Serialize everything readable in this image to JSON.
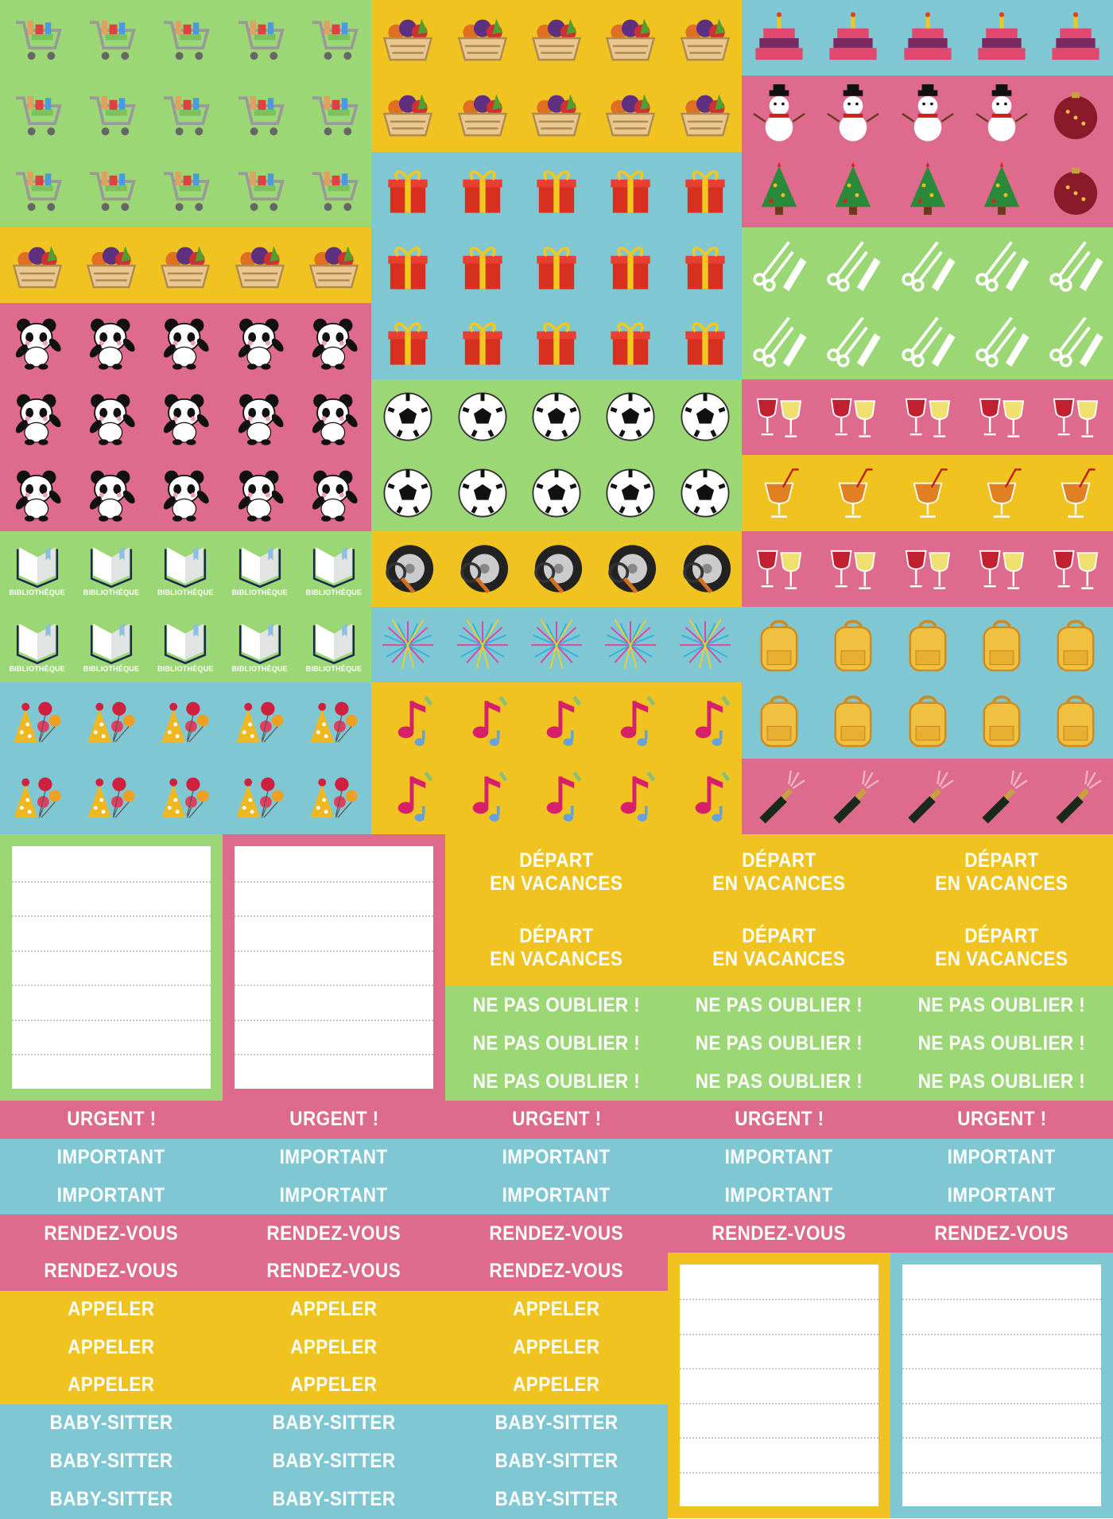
{
  "colors": {
    "green": "#9cd776",
    "pink": "#de6b8d",
    "yellow": "#f0c320",
    "blue": "#7fc8d3"
  },
  "icon_grid": [
    {
      "rows": [
        {
          "color": "green",
          "icons": [
            "cart",
            "cart",
            "cart",
            "cart",
            "cart"
          ]
        },
        {
          "color": "green",
          "icons": [
            "cart",
            "cart",
            "cart",
            "cart",
            "cart"
          ]
        },
        {
          "color": "green",
          "icons": [
            "cart",
            "cart",
            "cart",
            "cart",
            "cart"
          ]
        },
        {
          "color": "yellow",
          "icons": [
            "basket",
            "basket",
            "basket",
            "basket",
            "basket"
          ]
        },
        {
          "color": "pink",
          "icons": [
            "panda",
            "panda",
            "panda",
            "panda",
            "panda"
          ]
        },
        {
          "color": "pink",
          "icons": [
            "panda",
            "panda",
            "panda",
            "panda",
            "panda"
          ]
        },
        {
          "color": "pink",
          "icons": [
            "panda",
            "panda",
            "panda",
            "panda",
            "panda"
          ]
        },
        {
          "color": "green",
          "icons": [
            "book",
            "book",
            "book",
            "book",
            "book"
          ],
          "label": "BIBLIOTHÈQUE"
        },
        {
          "color": "green",
          "icons": [
            "book",
            "book",
            "book",
            "book",
            "book"
          ],
          "label": "BIBLIOTHÈQUE"
        },
        {
          "color": "blue",
          "icons": [
            "party",
            "party",
            "party",
            "party",
            "party"
          ]
        },
        {
          "color": "blue",
          "icons": [
            "party",
            "party",
            "party",
            "party",
            "party"
          ]
        }
      ]
    },
    {
      "rows": [
        {
          "color": "yellow",
          "icons": [
            "basket",
            "basket",
            "basket",
            "basket",
            "basket"
          ]
        },
        {
          "color": "yellow",
          "icons": [
            "basket",
            "basket",
            "basket",
            "basket",
            "basket"
          ]
        },
        {
          "color": "blue",
          "icons": [
            "gift",
            "gift",
            "gift",
            "gift",
            "gift"
          ]
        },
        {
          "color": "blue",
          "icons": [
            "gift",
            "gift",
            "gift",
            "gift",
            "gift"
          ]
        },
        {
          "color": "blue",
          "icons": [
            "gift",
            "gift",
            "gift",
            "gift",
            "gift"
          ]
        },
        {
          "color": "green",
          "icons": [
            "soccer-ball",
            "soccer-ball",
            "soccer-ball",
            "soccer-ball",
            "soccer-ball"
          ]
        },
        {
          "color": "green",
          "icons": [
            "soccer-ball",
            "soccer-ball",
            "soccer-ball",
            "soccer-ball",
            "soccer-ball"
          ]
        },
        {
          "color": "yellow",
          "icons": [
            "tire",
            "tire",
            "tire",
            "tire",
            "tire"
          ]
        },
        {
          "color": "blue",
          "icons": [
            "fireworks",
            "fireworks",
            "fireworks",
            "fireworks",
            "fireworks"
          ]
        },
        {
          "color": "yellow",
          "icons": [
            "music-note",
            "music-note",
            "music-note",
            "music-note",
            "music-note"
          ]
        },
        {
          "color": "yellow",
          "icons": [
            "music-note",
            "music-note",
            "music-note",
            "music-note",
            "music-note"
          ]
        }
      ]
    },
    {
      "rows": [
        {
          "color": "blue",
          "icons": [
            "cake",
            "cake",
            "cake",
            "cake",
            "cake"
          ]
        },
        {
          "color": "pink",
          "icons": [
            "snowman",
            "snowman",
            "snowman",
            "snowman",
            "ornament"
          ]
        },
        {
          "color": "pink",
          "icons": [
            "christmas-tree",
            "christmas-tree",
            "christmas-tree",
            "christmas-tree",
            "ornament"
          ]
        },
        {
          "color": "green",
          "icons": [
            "scissors-comb",
            "scissors-comb",
            "scissors-comb",
            "scissors-comb",
            "scissors-comb"
          ]
        },
        {
          "color": "green",
          "icons": [
            "scissors-comb",
            "scissors-comb",
            "scissors-comb",
            "scissors-comb",
            "scissors-comb"
          ]
        },
        {
          "color": "pink",
          "icons": [
            "wine-glasses",
            "wine-glasses",
            "wine-glasses",
            "wine-glasses",
            "wine-glasses"
          ]
        },
        {
          "color": "yellow",
          "icons": [
            "cocktail",
            "cocktail",
            "cocktail",
            "cocktail",
            "cocktail"
          ]
        },
        {
          "color": "pink",
          "icons": [
            "wine-glasses",
            "wine-glasses",
            "wine-glasses",
            "wine-glasses",
            "wine-glasses"
          ]
        },
        {
          "color": "blue",
          "icons": [
            "backpack",
            "backpack",
            "backpack",
            "backpack",
            "backpack"
          ]
        },
        {
          "color": "blue",
          "icons": [
            "backpack",
            "backpack",
            "backpack",
            "backpack",
            "backpack"
          ]
        },
        {
          "color": "pink",
          "icons": [
            "champagne",
            "champagne",
            "champagne",
            "champagne",
            "champagne"
          ]
        }
      ]
    }
  ],
  "labels": {
    "depart": "DÉPART EN VACANCES",
    "depart_line1": "DÉPART",
    "depart_line2": "EN VACANCES",
    "ne_pas_oublier": "NE PAS OUBLIER !",
    "urgent": "URGENT !",
    "important": "IMPORTANT",
    "rendez_vous": "RENDEZ-VOUS",
    "appeler": "APPELER",
    "baby_sitter": "BABY-SITTER"
  },
  "note_boxes": [
    {
      "color": "green"
    },
    {
      "color": "pink"
    },
    {
      "color": "yellow"
    },
    {
      "color": "blue"
    }
  ]
}
